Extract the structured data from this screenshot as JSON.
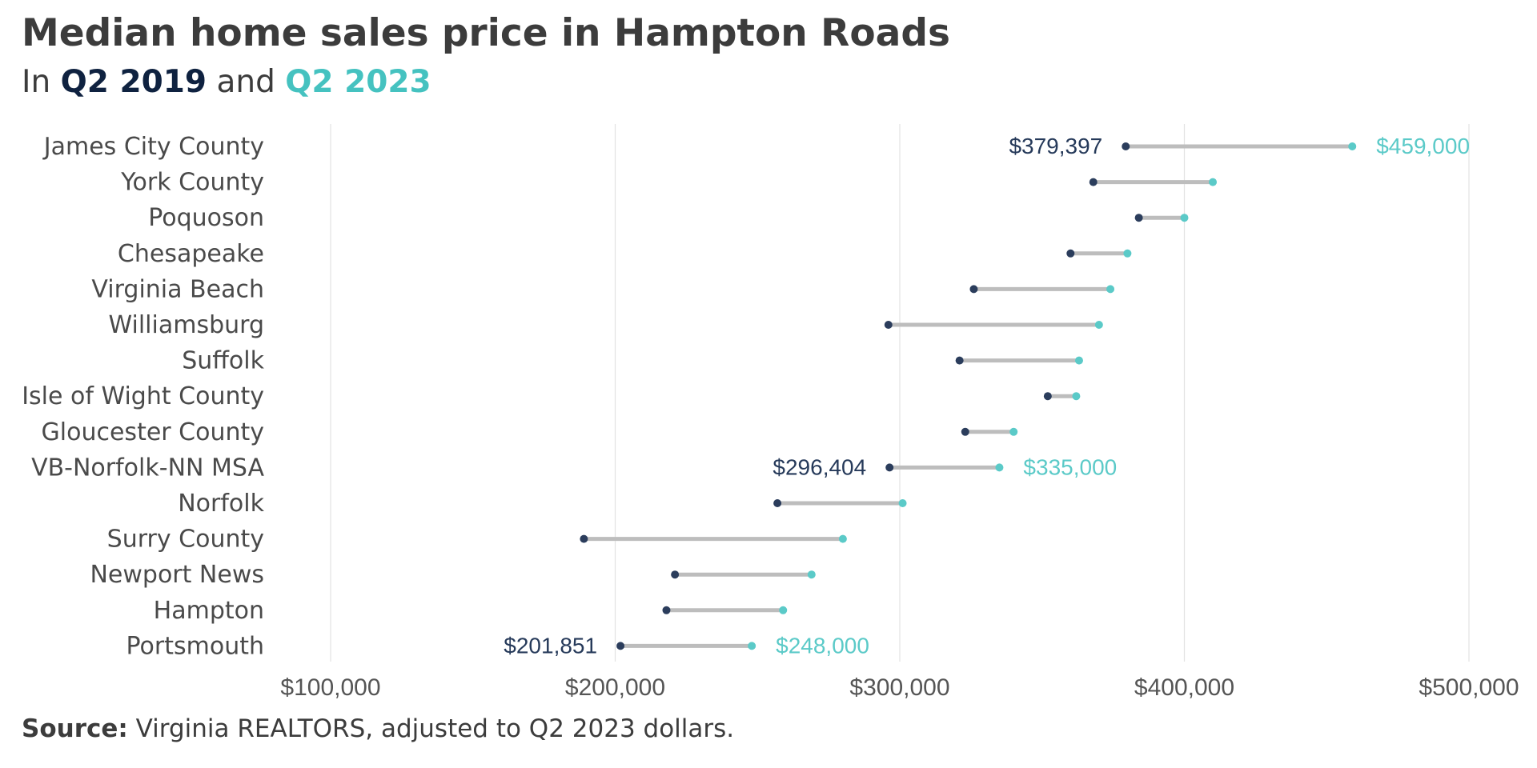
{
  "header": {
    "title": "Median home sales price in Hampton Roads",
    "subtitle_prefix": "In",
    "subtitle_series1": "Q2 2019",
    "subtitle_middle": "and",
    "subtitle_series2": "Q2 2023"
  },
  "source": {
    "label": "Source:",
    "text": "Virginia REALTORS, adjusted to Q2 2023 dollars."
  },
  "colors": {
    "q2_2019": "#2b3d5c",
    "q2_2023": "#5bcac8",
    "connector": "#bdbdbd",
    "grid": "#e3e3e3"
  },
  "chart_data": {
    "type": "dumbbell",
    "title": "Median home sales price in Hampton Roads",
    "subtitle": "In Q2 2019 and Q2 2023",
    "xlim": [
      100000,
      500000
    ],
    "x_ticks": [
      100000,
      200000,
      300000,
      400000,
      500000
    ],
    "x_tick_labels": [
      "$100,000",
      "$200,000",
      "$300,000",
      "$400,000",
      "$500,000"
    ],
    "grid": "vertical",
    "categories": [
      "James City County",
      "York County",
      "Poquoson",
      "Chesapeake",
      "Virginia Beach",
      "Williamsburg",
      "Suffolk",
      "Isle of Wight County",
      "Gloucester County",
      "VB-Norfolk-NN MSA",
      "Norfolk",
      "Surry County",
      "Newport News",
      "Hampton",
      "Portsmouth"
    ],
    "series": [
      {
        "name": "Q2 2019",
        "values": [
          379397,
          368000,
          384000,
          360000,
          326000,
          296000,
          321000,
          352000,
          323000,
          296404,
          257000,
          189000,
          221000,
          218000,
          201851
        ],
        "labels": [
          "$379,397",
          "",
          "",
          "",
          "",
          "",
          "",
          "",
          "",
          "$296,404",
          "",
          "",
          "",
          "",
          "$201,851"
        ]
      },
      {
        "name": "Q2 2023",
        "values": [
          459000,
          410000,
          400000,
          380000,
          374000,
          370000,
          363000,
          362000,
          340000,
          335000,
          301000,
          280000,
          269000,
          259000,
          248000
        ],
        "labels": [
          "$459,000",
          "",
          "",
          "",
          "",
          "",
          "",
          "",
          "",
          "$335,000",
          "",
          "",
          "",
          "",
          "$248,000"
        ]
      }
    ]
  }
}
